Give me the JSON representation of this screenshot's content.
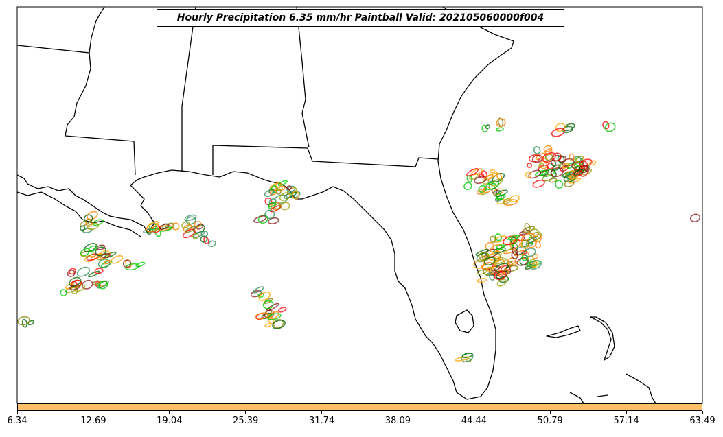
{
  "map": {
    "title": "Hourly Precipitation 6.35 mm/hr Paintball Valid: 202105060000f004"
  },
  "colorbar": {
    "color": "#ffc068",
    "tick_labels": [
      "6.34",
      "12.69",
      "19.04",
      "25.39",
      "31.74",
      "38.09",
      "44.44",
      "50.79",
      "57.14",
      "63.49"
    ]
  },
  "colors": {
    "coastline": "#000000",
    "precip_palette": [
      "#ff0000",
      "#ff7f00",
      "#ffa500",
      "#00c800",
      "#006400",
      "#808000",
      "#8b1a1a",
      "#2e8b57",
      "#9aa000"
    ]
  }
}
